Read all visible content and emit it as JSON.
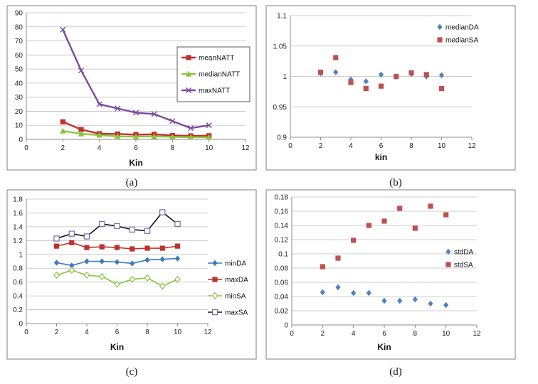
{
  "chart_data": [
    {
      "id": "a",
      "type": "line",
      "caption": "(a)",
      "xlabel": "Kin",
      "ylabel": "",
      "xlim": [
        0,
        12
      ],
      "ylim": [
        0,
        90
      ],
      "xticks": [
        0,
        2,
        4,
        6,
        8,
        10,
        12
      ],
      "yticks": [
        0,
        10,
        20,
        30,
        40,
        50,
        60,
        70,
        80,
        90
      ],
      "ydecimals": 0,
      "grid": true,
      "legend": "top-right",
      "x": [
        2,
        3,
        4,
        5,
        6,
        7,
        8,
        9,
        10
      ],
      "series": [
        {
          "name": "meanNATT",
          "color": "#c0302c",
          "marker": "square",
          "line": true,
          "values": [
            12.5,
            7,
            4,
            3.8,
            3.4,
            3.6,
            2.8,
            2.5,
            2.6
          ]
        },
        {
          "name": "medianNATT",
          "color": "#8bc540",
          "marker": "triangle",
          "line": true,
          "values": [
            6,
            4,
            3,
            2.2,
            2,
            2.1,
            1.8,
            1.6,
            1.5
          ]
        },
        {
          "name": "maxNATT",
          "color": "#7b4aa0",
          "marker": "x",
          "line": true,
          "values": [
            78,
            49,
            25,
            22,
            19,
            18,
            13,
            8,
            10
          ]
        }
      ]
    },
    {
      "id": "b",
      "type": "scatter",
      "caption": "(b)",
      "xlabel": "kin",
      "ylabel": "",
      "xlim": [
        0,
        12
      ],
      "ylim": [
        0.9,
        1.1
      ],
      "xticks": [
        0,
        2,
        4,
        6,
        8,
        10,
        12
      ],
      "yticks": [
        0.9,
        0.95,
        1,
        1.05,
        1.1
      ],
      "ydecimals": 2,
      "grid": true,
      "legend": "top-right",
      "x": [
        2,
        3,
        4,
        5,
        6,
        7,
        8,
        9,
        10
      ],
      "series": [
        {
          "name": "medianDA",
          "color": "#4f81bd",
          "marker": "diamond",
          "line": false,
          "values": [
            1.005,
            1.007,
            0.995,
            0.992,
            1.003,
            0.999,
            1.004,
            1.0,
            1.002
          ]
        },
        {
          "name": "medianSA",
          "color": "#c0504d",
          "marker": "square",
          "line": false,
          "values": [
            1.007,
            1.031,
            0.99,
            0.98,
            0.984,
            1.0,
            1.006,
            1.003,
            0.98
          ]
        }
      ]
    },
    {
      "id": "c",
      "type": "line",
      "caption": "(c)",
      "xlabel": "Kin",
      "ylabel": "",
      "xlim": [
        0,
        12
      ],
      "ylim": [
        0,
        1.8
      ],
      "xticks": [
        0,
        2,
        4,
        6,
        8,
        10,
        12
      ],
      "yticks": [
        0,
        0.2,
        0.4,
        0.6,
        0.8,
        1,
        1.2,
        1.4,
        1.6,
        1.8
      ],
      "ydecimals": 1,
      "grid": true,
      "legend": "right",
      "x": [
        2,
        3,
        4,
        5,
        6,
        7,
        8,
        9,
        10
      ],
      "series": [
        {
          "name": "minDA",
          "color": "#3a79c0",
          "marker": "diamond",
          "line": true,
          "values": [
            0.88,
            0.84,
            0.9,
            0.9,
            0.89,
            0.87,
            0.92,
            0.93,
            0.94
          ]
        },
        {
          "name": "maxDA",
          "color": "#c0302c",
          "marker": "square",
          "line": true,
          "values": [
            1.12,
            1.17,
            1.1,
            1.11,
            1.1,
            1.08,
            1.09,
            1.09,
            1.12
          ]
        },
        {
          "name": "minSA",
          "color": "#8bc540",
          "marker": "diamond-open",
          "line": true,
          "values": [
            0.7,
            0.77,
            0.7,
            0.68,
            0.57,
            0.64,
            0.66,
            0.54,
            0.64
          ]
        },
        {
          "name": "maxSA",
          "color": "#7b68a8",
          "linecolor": "#111111",
          "marker": "square-open",
          "line": true,
          "values": [
            1.23,
            1.3,
            1.26,
            1.44,
            1.41,
            1.36,
            1.34,
            1.61,
            1.44
          ]
        }
      ]
    },
    {
      "id": "d",
      "type": "scatter",
      "caption": "(d)",
      "xlabel": "Kin",
      "ylabel": "",
      "xlim": [
        0,
        12
      ],
      "ylim": [
        0,
        0.18
      ],
      "xticks": [
        0,
        2,
        4,
        6,
        8,
        10,
        12
      ],
      "yticks": [
        0,
        0.02,
        0.04,
        0.06,
        0.08,
        0.1,
        0.12,
        0.14,
        0.16,
        0.18
      ],
      "ydecimals": 2,
      "grid": true,
      "legend": "right",
      "x": [
        2,
        3,
        4,
        5,
        6,
        7,
        8,
        9,
        10
      ],
      "series": [
        {
          "name": "stdDA",
          "color": "#4f81bd",
          "marker": "diamond",
          "line": false,
          "values": [
            0.046,
            0.053,
            0.045,
            0.045,
            0.034,
            0.034,
            0.036,
            0.03,
            0.028
          ]
        },
        {
          "name": "stdSA",
          "color": "#c0504d",
          "marker": "square",
          "line": false,
          "values": [
            0.082,
            0.094,
            0.119,
            0.14,
            0.146,
            0.164,
            0.136,
            0.167,
            0.155
          ]
        }
      ]
    }
  ]
}
